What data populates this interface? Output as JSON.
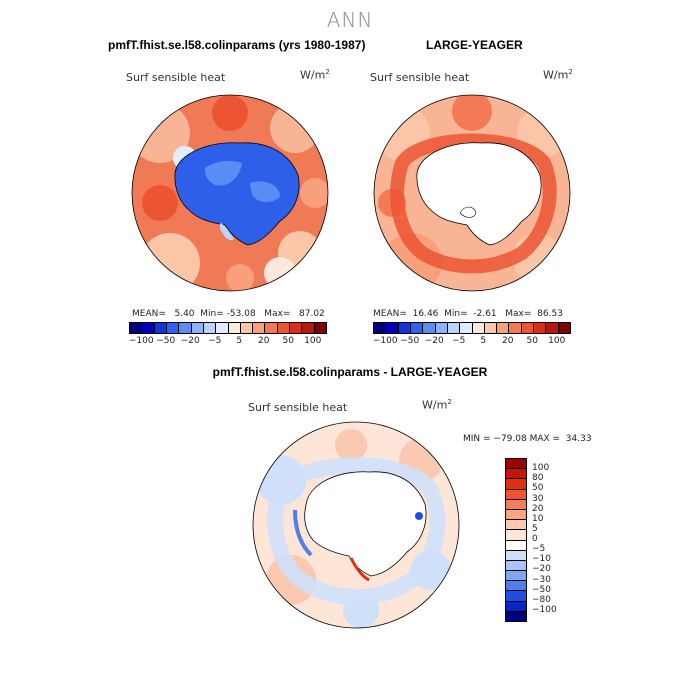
{
  "page_title": "ANN",
  "colors": {
    "scale": [
      "#00007f",
      "#0000b8",
      "#1034e0",
      "#2e62f0",
      "#5b8cf5",
      "#8fb2f7",
      "#bcd4fb",
      "#e2ecfd",
      "#fde8dc",
      "#fbc6a8",
      "#f8a07c",
      "#f47a55",
      "#ec5533",
      "#d6301b",
      "#b51a10",
      "#800000"
    ],
    "land_blue": "#2e5fe8",
    "ocean_warm": "#f07a55",
    "ocean_light": "#f8b596"
  },
  "panels": [
    {
      "title": "pmfT.fhist.se.l58.colinparams (yrs 1980-1987)",
      "var_label": "Surf sensible heat",
      "units": "W/m",
      "units_sup": "2",
      "mean_label": "MEAN=",
      "mean": "5.40",
      "min_label": "Min=",
      "min": "-53.08",
      "max_label": "Max=",
      "max": "87.02",
      "ticks": [
        "-100",
        "-50",
        "-20",
        "-5",
        "5",
        "20",
        "50",
        "100"
      ]
    },
    {
      "title": "LARGE-YEAGER",
      "var_label": "Surf sensible heat",
      "units": "W/m",
      "units_sup": "2",
      "mean_label": "MEAN=",
      "mean": "16.46",
      "min_label": "Min=",
      "min": "-2.61",
      "max_label": "Max=",
      "max": "86.53",
      "ticks": [
        "-100",
        "-50",
        "-20",
        "-5",
        "5",
        "20",
        "50",
        "100"
      ]
    }
  ],
  "diff": {
    "title": "pmfT.fhist.se.l58.colinparams - LARGE-YEAGER",
    "var_label": "Surf sensible heat",
    "units": "W/m",
    "units_sup": "2",
    "stats": "MIN = −79.08 MAX =  34.33",
    "levels": [
      "100",
      "80",
      "50",
      "30",
      "20",
      "10",
      "5",
      "0",
      "−5",
      "−10",
      "−20",
      "−30",
      "−50",
      "−80",
      "−100"
    ],
    "colors": [
      "#9a0000",
      "#c41508",
      "#e0300f",
      "#f05530",
      "#f57e58",
      "#f8a582",
      "#fbc9b0",
      "#fde5d8",
      "#ffffff",
      "#cfe0fb",
      "#a9c6f7",
      "#7ea6f2",
      "#4f7eec",
      "#1f4de4",
      "#0726c4",
      "#00007f"
    ]
  }
}
